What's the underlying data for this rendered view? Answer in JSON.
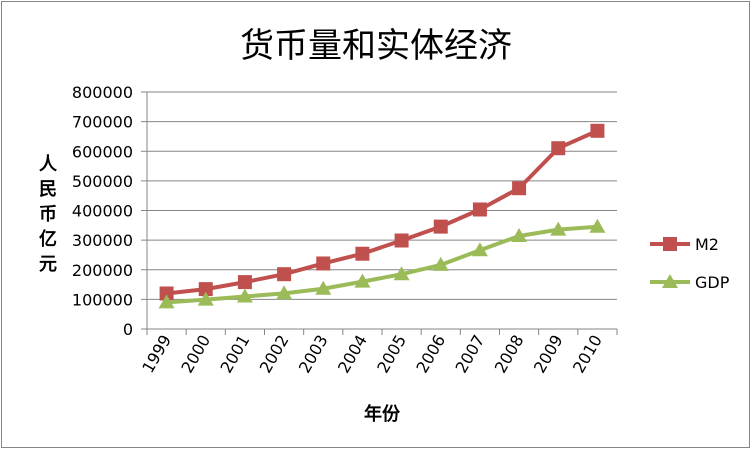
{
  "chart_data": {
    "type": "line",
    "title": "货币量和实体经济",
    "xlabel": "年份",
    "ylabel": "人民币亿元",
    "categories": [
      "1999",
      "2000",
      "2001",
      "2002",
      "2003",
      "2004",
      "2005",
      "2006",
      "2007",
      "2008",
      "2009",
      "2010"
    ],
    "ylim": [
      0,
      800000
    ],
    "yticks": [
      "0",
      "100000",
      "200000",
      "300000",
      "400000",
      "500000",
      "600000",
      "700000",
      "800000"
    ],
    "grid": true,
    "legend_position": "right",
    "series": [
      {
        "name": "M2",
        "color": "#c0504d",
        "marker": "square",
        "values": [
          119898,
          134610,
          158302,
          185007,
          221223,
          254107,
          298756,
          345604,
          403442,
          475167,
          610225,
          669000
        ]
      },
      {
        "name": "GDP",
        "color": "#9bbb59",
        "marker": "triangle",
        "values": [
          89677,
          99215,
          109655,
          120333,
          135823,
          159878,
          184937,
          216314,
          265810,
          314045,
          335353,
          345000
        ]
      }
    ]
  }
}
